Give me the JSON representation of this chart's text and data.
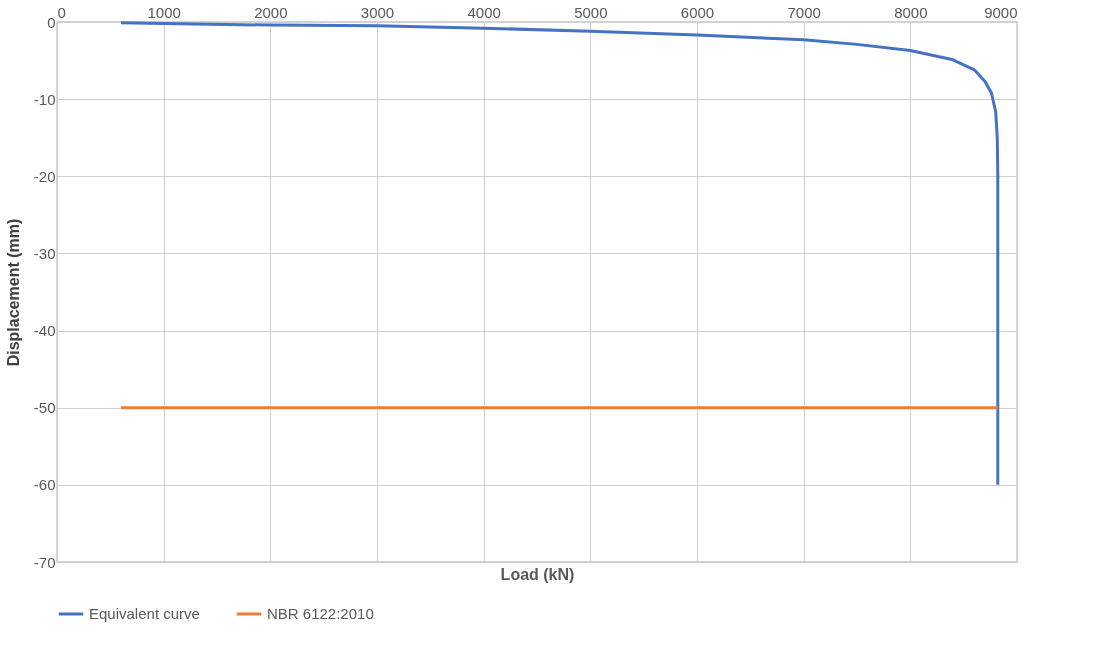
{
  "chart_data": {
    "type": "line",
    "xlabel": "Load (kN)",
    "ylabel": "Displacement (mm)",
    "xlim": [
      0,
      9000
    ],
    "xticks": [
      0,
      1000,
      2000,
      3000,
      4000,
      5000,
      6000,
      7000,
      8000,
      9000
    ],
    "ylim": [
      -70,
      0
    ],
    "yticks": [
      0,
      -10,
      -20,
      -30,
      -40,
      -50,
      -60,
      -70
    ],
    "grid": true,
    "legend": "bottom",
    "marker": "none",
    "line_style": "solid",
    "series": [
      {
        "name": "Equivalent curve",
        "color": "#4472c4",
        "x": [
          600,
          1000,
          2000,
          3000,
          4000,
          5000,
          6000,
          7000,
          7500,
          8000,
          8400,
          8600,
          8700,
          8760,
          8800,
          8815,
          8820,
          8820
        ],
        "values": [
          -0.1,
          -0.2,
          -0.4,
          -0.5,
          -0.8,
          -1.2,
          -1.7,
          -2.3,
          -2.9,
          -3.7,
          -4.9,
          -6.2,
          -7.7,
          -9.2,
          -11.6,
          -15,
          -20,
          -60
        ]
      },
      {
        "name": "NBR 6122:2010",
        "color": "#ed7d31",
        "x": [
          600,
          8820
        ],
        "values": [
          -50,
          -50
        ]
      }
    ]
  }
}
